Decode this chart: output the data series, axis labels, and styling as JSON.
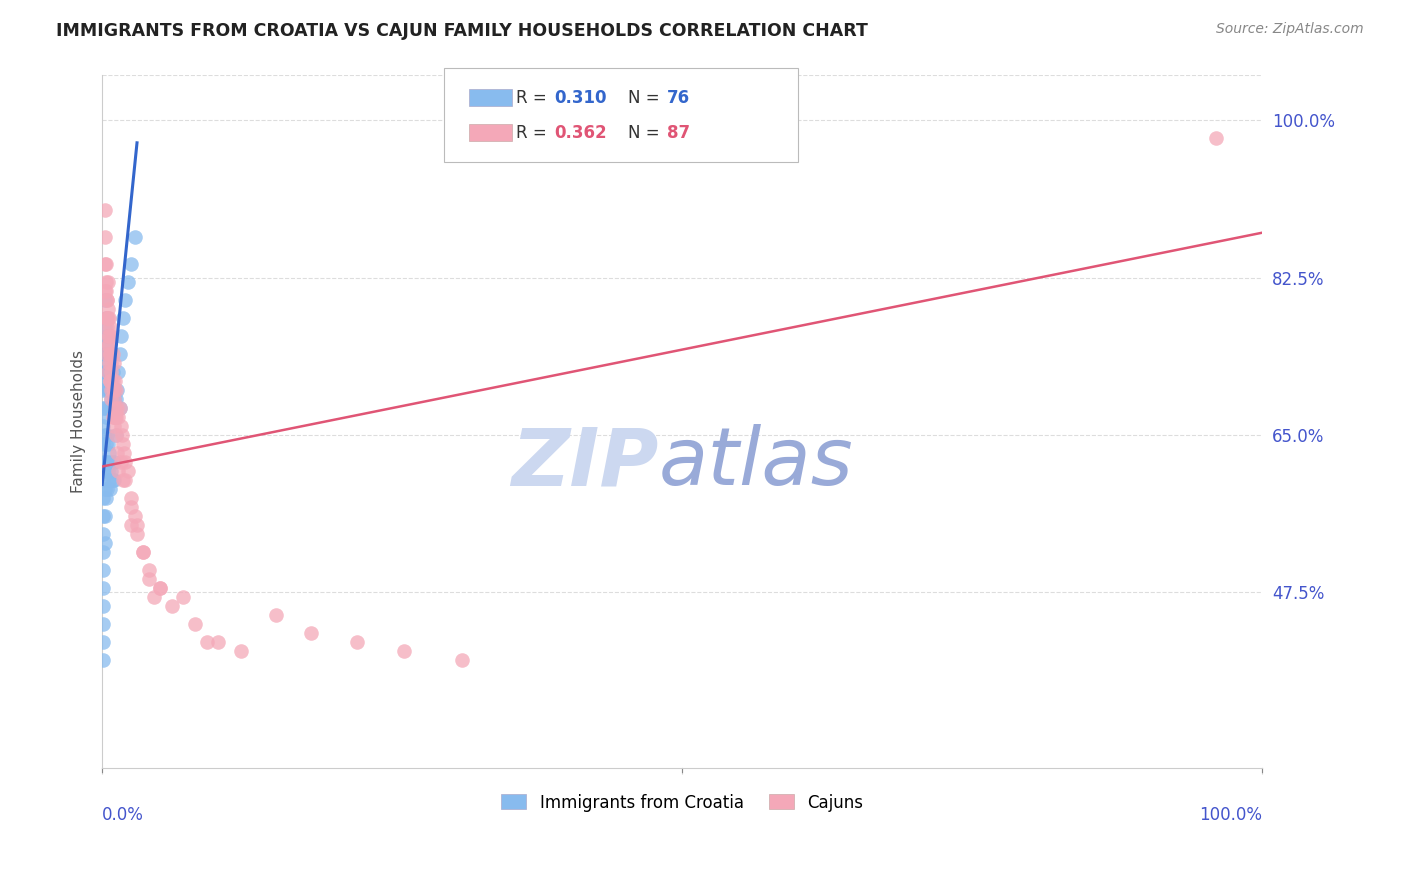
{
  "title": "IMMIGRANTS FROM CROATIA VS CAJUN FAMILY HOUSEHOLDS CORRELATION CHART",
  "source": "Source: ZipAtlas.com",
  "ylabel": "Family Households",
  "ytick_labels": [
    "100.0%",
    "82.5%",
    "65.0%",
    "47.5%"
  ],
  "ytick_values": [
    1.0,
    0.825,
    0.65,
    0.475
  ],
  "xlim": [
    0.0,
    1.0
  ],
  "ylim": [
    0.28,
    1.05
  ],
  "legend_blue_r": "0.310",
  "legend_blue_n": "76",
  "legend_pink_r": "0.362",
  "legend_pink_n": "87",
  "blue_scatter_color": "#88bbee",
  "pink_scatter_color": "#f4a8b8",
  "blue_line_color": "#3366cc",
  "pink_line_color": "#e05575",
  "label_blue": "Immigrants from Croatia",
  "label_pink": "Cajuns",
  "blue_scatter_x": [
    0.002,
    0.002,
    0.002,
    0.003,
    0.003,
    0.003,
    0.004,
    0.004,
    0.004,
    0.005,
    0.005,
    0.005,
    0.006,
    0.006,
    0.006,
    0.007,
    0.007,
    0.008,
    0.008,
    0.009,
    0.009,
    0.01,
    0.01,
    0.011,
    0.012,
    0.013,
    0.014,
    0.015,
    0.016,
    0.018,
    0.02,
    0.022,
    0.025,
    0.028,
    0.001,
    0.001,
    0.001,
    0.001,
    0.001,
    0.001,
    0.001,
    0.001,
    0.001,
    0.001,
    0.001,
    0.001,
    0.001,
    0.001,
    0.001,
    0.001,
    0.001,
    0.002,
    0.002,
    0.002,
    0.002,
    0.002,
    0.002,
    0.003,
    0.003,
    0.003,
    0.003,
    0.004,
    0.004,
    0.004,
    0.005,
    0.005,
    0.006,
    0.006,
    0.007,
    0.007,
    0.008,
    0.009,
    0.01,
    0.01,
    0.012,
    0.015
  ],
  "blue_scatter_y": [
    0.8,
    0.77,
    0.74,
    0.78,
    0.75,
    0.72,
    0.76,
    0.73,
    0.7,
    0.74,
    0.71,
    0.68,
    0.72,
    0.7,
    0.68,
    0.72,
    0.7,
    0.71,
    0.69,
    0.72,
    0.7,
    0.7,
    0.69,
    0.68,
    0.69,
    0.7,
    0.72,
    0.74,
    0.76,
    0.78,
    0.8,
    0.82,
    0.84,
    0.87,
    0.72,
    0.7,
    0.68,
    0.66,
    0.64,
    0.62,
    0.6,
    0.58,
    0.56,
    0.54,
    0.52,
    0.5,
    0.48,
    0.46,
    0.44,
    0.42,
    0.4,
    0.68,
    0.65,
    0.62,
    0.59,
    0.56,
    0.53,
    0.67,
    0.64,
    0.61,
    0.58,
    0.65,
    0.62,
    0.59,
    0.64,
    0.61,
    0.63,
    0.6,
    0.62,
    0.59,
    0.61,
    0.6,
    0.62,
    0.6,
    0.65,
    0.68
  ],
  "pink_scatter_x": [
    0.003,
    0.004,
    0.004,
    0.005,
    0.005,
    0.005,
    0.006,
    0.006,
    0.007,
    0.007,
    0.007,
    0.008,
    0.008,
    0.008,
    0.009,
    0.009,
    0.01,
    0.01,
    0.01,
    0.011,
    0.011,
    0.012,
    0.012,
    0.013,
    0.014,
    0.015,
    0.016,
    0.017,
    0.018,
    0.019,
    0.02,
    0.022,
    0.025,
    0.028,
    0.03,
    0.035,
    0.04,
    0.045,
    0.05,
    0.06,
    0.07,
    0.08,
    0.09,
    0.1,
    0.12,
    0.15,
    0.18,
    0.22,
    0.26,
    0.31,
    0.002,
    0.002,
    0.002,
    0.003,
    0.003,
    0.003,
    0.004,
    0.004,
    0.004,
    0.005,
    0.005,
    0.005,
    0.006,
    0.006,
    0.007,
    0.007,
    0.008,
    0.008,
    0.009,
    0.009,
    0.01,
    0.01,
    0.011,
    0.012,
    0.013,
    0.014,
    0.016,
    0.018,
    0.02,
    0.025,
    0.025,
    0.03,
    0.035,
    0.04,
    0.05,
    0.96,
    0.002
  ],
  "pink_scatter_y": [
    0.82,
    0.8,
    0.78,
    0.82,
    0.79,
    0.76,
    0.78,
    0.75,
    0.77,
    0.74,
    0.71,
    0.76,
    0.73,
    0.7,
    0.74,
    0.71,
    0.73,
    0.7,
    0.67,
    0.71,
    0.68,
    0.7,
    0.67,
    0.68,
    0.67,
    0.68,
    0.66,
    0.65,
    0.64,
    0.63,
    0.62,
    0.61,
    0.58,
    0.56,
    0.55,
    0.52,
    0.49,
    0.47,
    0.48,
    0.46,
    0.47,
    0.44,
    0.42,
    0.42,
    0.41,
    0.45,
    0.43,
    0.42,
    0.41,
    0.4,
    0.87,
    0.84,
    0.81,
    0.84,
    0.81,
    0.78,
    0.8,
    0.77,
    0.74,
    0.78,
    0.75,
    0.72,
    0.76,
    0.73,
    0.74,
    0.71,
    0.72,
    0.69,
    0.7,
    0.67,
    0.69,
    0.66,
    0.67,
    0.65,
    0.63,
    0.61,
    0.62,
    0.6,
    0.6,
    0.57,
    0.55,
    0.54,
    0.52,
    0.5,
    0.48,
    0.98,
    0.9
  ],
  "blue_line_x": [
    0.0,
    0.03
  ],
  "blue_line_y": [
    0.595,
    0.975
  ],
  "pink_line_x": [
    0.0,
    1.0
  ],
  "pink_line_y": [
    0.615,
    0.875
  ],
  "grid_color": "#dddddd",
  "title_color": "#222222",
  "axis_label_color": "#4455cc",
  "watermark_zip_color": "#ccd8f0",
  "watermark_atlas_color": "#99aad8"
}
